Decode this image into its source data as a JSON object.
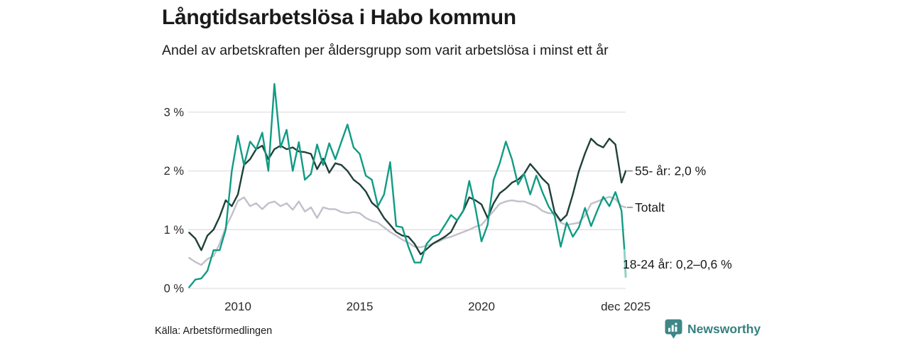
{
  "header": {
    "title": "Långtidsarbetslösa i Habo kommun",
    "subtitle": "Andel av arbetskraften per åldersgrupp som varit arbetslösa i minst ett år"
  },
  "footer": {
    "source": "Källa: Arbetsförmedlingen",
    "brand": "Newsworthy"
  },
  "colors": {
    "series_55": "#1f4038",
    "series_total": "#c2bfca",
    "series_1824": "#109b84",
    "series_1824_light": "#93d1c6",
    "grid": "#e0dfe4",
    "text": "#1a1a1a",
    "tick_text": "#2a2a2a",
    "label_dash": "#777777",
    "brand_teal": "#35807f",
    "brand_icon": "#3d8787"
  },
  "chart_data": {
    "type": "line",
    "title": "Långtidsarbetslösa i Habo kommun",
    "subtitle": "Andel av arbetskraften per åldersgrupp som varit arbetslösa i minst ett år",
    "x_unit": "year, quarterly samples starting 2008.0",
    "x_start": 2008.0,
    "x_step": 0.25,
    "xlim": [
      2008.0,
      2025.92
    ],
    "ylim": [
      0,
      3.6
    ],
    "grid": "horizontal-only",
    "legend_position": "right-annotations",
    "y_ticks": [
      {
        "value": 0,
        "label": "0 %"
      },
      {
        "value": 1,
        "label": "1 %"
      },
      {
        "value": 2,
        "label": "2 %"
      },
      {
        "value": 3,
        "label": "3 %"
      }
    ],
    "x_ticks": [
      {
        "value": 2010,
        "label": "2010"
      },
      {
        "value": 2015,
        "label": "2015"
      },
      {
        "value": 2020,
        "label": "2020"
      },
      {
        "value": 2025.92,
        "label": "dec 2025"
      }
    ],
    "series": [
      {
        "name": "Totalt",
        "color_key": "series_total",
        "values": [
          0.52,
          0.45,
          0.4,
          0.5,
          0.55,
          0.76,
          1.04,
          1.25,
          1.49,
          1.55,
          1.4,
          1.45,
          1.35,
          1.45,
          1.48,
          1.4,
          1.45,
          1.34,
          1.48,
          1.31,
          1.38,
          1.2,
          1.38,
          1.35,
          1.35,
          1.3,
          1.28,
          1.3,
          1.28,
          1.2,
          1.15,
          1.12,
          1.04,
          0.96,
          0.9,
          0.83,
          0.78,
          0.71,
          0.7,
          0.73,
          0.76,
          0.8,
          0.85,
          0.88,
          0.92,
          0.96,
          1.0,
          1.05,
          1.08,
          1.2,
          1.32,
          1.44,
          1.48,
          1.5,
          1.48,
          1.48,
          1.44,
          1.4,
          1.32,
          1.28,
          1.28,
          1.12,
          1.08,
          1.1,
          1.12,
          1.24,
          1.44,
          1.48,
          1.52,
          1.56,
          1.52,
          1.4
        ],
        "extra_points": [
          [
            2025.92,
            1.38
          ]
        ],
        "label": {
          "text": "Totalt",
          "at_value": 1.38,
          "dash": true
        }
      },
      {
        "name": "55- år",
        "color_key": "series_55",
        "values": [
          0.95,
          0.85,
          0.65,
          0.9,
          1.0,
          1.22,
          1.5,
          1.4,
          1.6,
          2.1,
          2.2,
          2.37,
          2.43,
          2.2,
          2.37,
          2.43,
          2.37,
          2.4,
          2.33,
          2.32,
          2.29,
          2.03,
          2.21,
          1.97,
          2.13,
          2.1,
          2.0,
          1.85,
          1.77,
          1.65,
          1.46,
          1.37,
          1.2,
          1.08,
          0.96,
          0.9,
          0.88,
          0.76,
          0.58,
          0.67,
          0.76,
          0.82,
          0.88,
          0.96,
          1.16,
          1.32,
          1.55,
          1.5,
          1.43,
          1.2,
          1.45,
          1.62,
          1.7,
          1.8,
          1.85,
          1.95,
          2.12,
          2.0,
          1.87,
          1.77,
          1.3,
          1.15,
          1.25,
          1.6,
          2.0,
          2.3,
          2.55,
          2.45,
          2.4,
          2.55,
          2.45,
          1.8
        ],
        "extra_points": [
          [
            2025.92,
            2.0
          ]
        ],
        "label": {
          "text": "55- år: 2,0 %",
          "at_value": 2.0,
          "dash": true
        }
      },
      {
        "name": "18-24 år",
        "color_key": "series_1824",
        "values": [
          0.02,
          0.15,
          0.17,
          0.3,
          0.65,
          0.65,
          1.0,
          2.0,
          2.6,
          2.1,
          2.5,
          2.37,
          2.65,
          2.0,
          3.48,
          2.4,
          2.7,
          2.0,
          2.49,
          1.85,
          1.95,
          2.45,
          2.1,
          2.47,
          2.2,
          2.5,
          2.79,
          2.4,
          2.29,
          1.92,
          1.85,
          1.4,
          1.6,
          2.15,
          1.06,
          1.04,
          0.71,
          0.44,
          0.44,
          0.76,
          0.88,
          0.92,
          1.08,
          1.25,
          1.16,
          1.32,
          1.83,
          1.37,
          0.8,
          1.08,
          1.85,
          2.13,
          2.5,
          2.2,
          1.77,
          1.95,
          1.6,
          1.92,
          1.64,
          1.4,
          1.24,
          0.71,
          1.12,
          0.88,
          1.04,
          1.37,
          1.06,
          1.32,
          1.56,
          1.4,
          1.64,
          1.32
        ],
        "extra_points": [
          [
            2025.87,
            0.65
          ]
        ],
        "light_tail": [
          [
            2025.87,
            0.65
          ],
          [
            2025.92,
            0.2
          ]
        ],
        "light_color_key": "series_1824_light",
        "label": {
          "text": "18-24 år: 0,2–0,6 %",
          "at_value": 0.41,
          "dash": false
        }
      }
    ]
  }
}
